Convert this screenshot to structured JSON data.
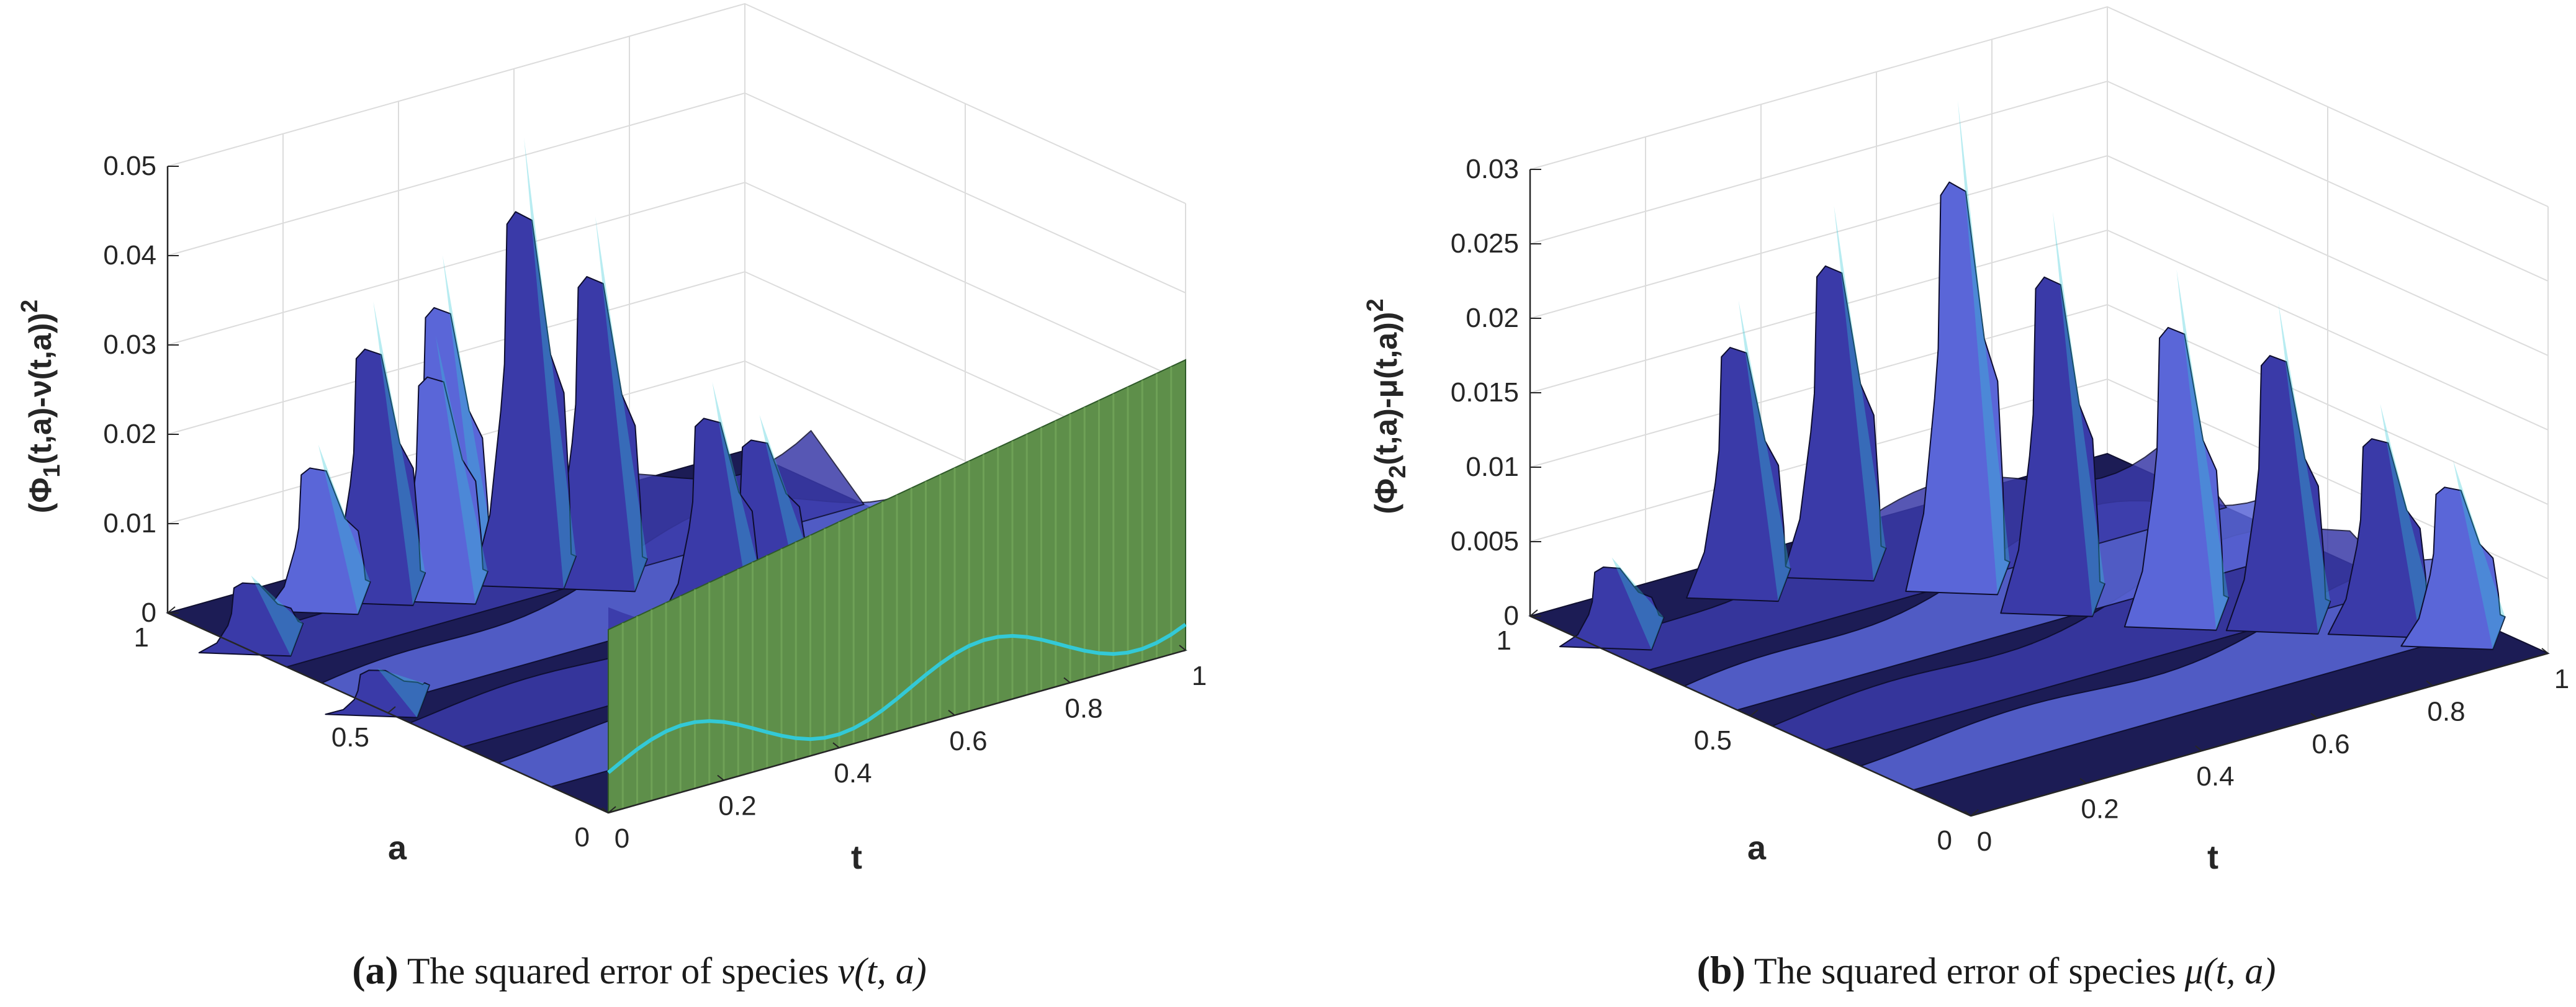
{
  "chart_data": [
    {
      "type": "surface3d",
      "panel": "a",
      "caption_tag": "(a)",
      "caption_text": "The squared error of species",
      "caption_math": "ν(t, a)",
      "zlabel_pre": "(Φ",
      "zlabel_sub": "1",
      "zlabel_mid": "(t,a)-ν(t,a))",
      "zlabel_sup": "2",
      "xlabel": "t",
      "ylabel": "a",
      "zticks": [
        "0",
        "0.01",
        "0.02",
        "0.03",
        "0.04",
        "0.05"
      ],
      "zlim": [
        0,
        0.05
      ],
      "xticks": [
        "0",
        "0.2",
        "0.4",
        "0.6",
        "0.8",
        "1"
      ],
      "yticks": [
        "0",
        "0.5",
        "1"
      ],
      "xlim": [
        0,
        1
      ],
      "ylim": [
        0,
        1
      ],
      "colors": {
        "surface": "#3a3aa8",
        "surface_light": "#5a66d8",
        "highlight": "#33c9d6",
        "plane": "#5e8f4a",
        "plane_light": "#7aae5e"
      },
      "peaks": [
        {
          "t": 0.02,
          "a": 0.55,
          "z": 0.0035
        },
        {
          "t": 0.03,
          "a": 0.85,
          "z": 0.007
        },
        {
          "t": 0.2,
          "a": 0.92,
          "z": 0.017
        },
        {
          "t": 0.28,
          "a": 0.9,
          "z": 0.032
        },
        {
          "t": 0.35,
          "a": 0.85,
          "z": 0.028
        },
        {
          "t": 0.4,
          "a": 0.9,
          "z": 0.035
        },
        {
          "t": 0.48,
          "a": 0.82,
          "z": 0.0485
        },
        {
          "t": 0.55,
          "a": 0.75,
          "z": 0.04
        },
        {
          "t": 0.6,
          "a": 0.55,
          "z": 0.025
        },
        {
          "t": 0.72,
          "a": 0.6,
          "z": 0.018
        }
      ]
    },
    {
      "type": "surface3d",
      "panel": "b",
      "caption_tag": "(b)",
      "caption_text": "The squared error of species",
      "caption_math": "μ(t, a)",
      "zlabel_pre": "(Φ",
      "zlabel_sub": "2",
      "zlabel_mid": "(t,a)-μ(t,a))",
      "zlabel_sup": "2",
      "xlabel": "t",
      "ylabel": "a",
      "zticks": [
        "0",
        "0.005",
        "0.01",
        "0.015",
        "0.02",
        "0.025",
        "0.03"
      ],
      "zlim": [
        0,
        0.03
      ],
      "xticks": [
        "0",
        "0.2",
        "0.4",
        "0.6",
        "0.8",
        "1"
      ],
      "yticks": [
        "0",
        "0.5",
        "1"
      ],
      "xlim": [
        0,
        1
      ],
      "ylim": [
        0,
        1
      ],
      "colors": {
        "surface": "#3a3aa8",
        "surface_light": "#5a66d8",
        "highlight": "#33c9d6"
      },
      "peaks": [
        {
          "t": 0.05,
          "a": 0.88,
          "z": 0.005
        },
        {
          "t": 0.3,
          "a": 0.92,
          "z": 0.019
        },
        {
          "t": 0.45,
          "a": 0.9,
          "z": 0.024
        },
        {
          "t": 0.55,
          "a": 0.75,
          "z": 0.032
        },
        {
          "t": 0.6,
          "a": 0.6,
          "z": 0.026
        },
        {
          "t": 0.7,
          "a": 0.45,
          "z": 0.023
        },
        {
          "t": 0.8,
          "a": 0.35,
          "z": 0.021
        },
        {
          "t": 0.9,
          "a": 0.25,
          "z": 0.0145
        },
        {
          "t": 0.95,
          "a": 0.15,
          "z": 0.0115
        }
      ]
    }
  ]
}
